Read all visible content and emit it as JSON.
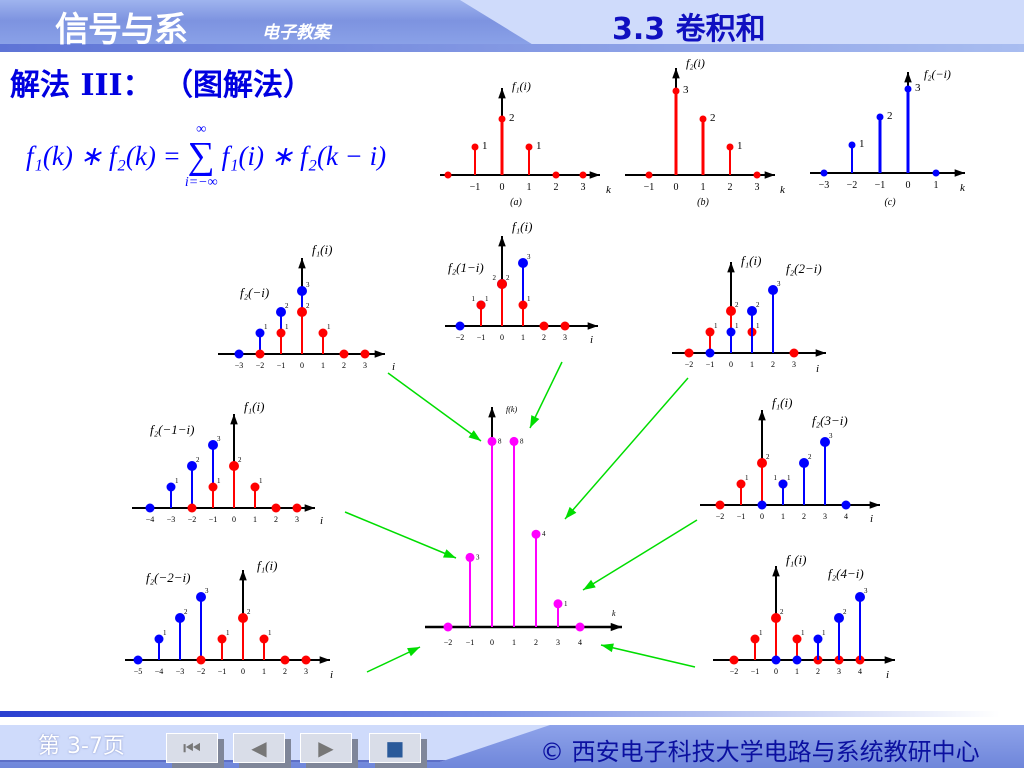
{
  "header": {
    "course_title": "信号与系",
    "course_sub": "电子教案",
    "section": "3.3  卷积和"
  },
  "method": "解法 III：  （图解法）",
  "formula": {
    "lhs": "f₁(k) ∗ f₂(k) = ",
    "sum": "∑",
    "upper": "∞",
    "lower": "i=−∞",
    "rhs": "f₁(i) ∗ f₂(k − i)"
  },
  "colors": {
    "f1": "#ff0000",
    "f2": "#0000ff",
    "result": "#ff00ff",
    "arrow": "#00dd00"
  },
  "plots": [
    {
      "id": "a",
      "caption": "(a)",
      "xlabel": "k",
      "labels": [
        "f₁(i)"
      ],
      "ticks": [
        -1,
        0,
        1,
        2,
        3
      ],
      "series": [
        {
          "color": "f1",
          "points": [
            [
              -2,
              0
            ],
            [
              -1,
              1
            ],
            [
              0,
              2
            ],
            [
              1,
              1
            ],
            [
              2,
              0
            ],
            [
              3,
              0
            ]
          ]
        }
      ]
    },
    {
      "id": "b",
      "caption": "(b)",
      "xlabel": "k",
      "labels": [
        "f₂(i)"
      ],
      "ticks": [
        -1,
        0,
        1,
        2,
        3
      ],
      "series": [
        {
          "color": "f1",
          "points": [
            [
              -1,
              0
            ],
            [
              0,
              3
            ],
            [
              1,
              2
            ],
            [
              2,
              1
            ],
            [
              3,
              0
            ]
          ]
        }
      ]
    },
    {
      "id": "c",
      "caption": "(c)",
      "xlabel": "k",
      "labels": [
        "f₂(−i)"
      ],
      "ticks": [
        -3,
        -2,
        -1,
        0,
        1
      ],
      "series": [
        {
          "color": "f2",
          "points": [
            [
              -3,
              0
            ],
            [
              -2,
              1
            ],
            [
              -1,
              2
            ],
            [
              0,
              3
            ],
            [
              1,
              0
            ]
          ]
        }
      ]
    },
    {
      "id": "k0",
      "xlabel": "i",
      "labels": [
        "f₁(i)",
        "f₂(−i)"
      ],
      "ticks": [
        -3,
        -2,
        -1,
        0,
        1,
        2,
        3
      ],
      "series": [
        {
          "color": "f2",
          "points": [
            [
              -3,
              0
            ],
            [
              -2,
              1
            ],
            [
              -1,
              2
            ],
            [
              0,
              3
            ]
          ]
        },
        {
          "color": "f1",
          "points": [
            [
              -2,
              0
            ],
            [
              -1,
              1
            ],
            [
              0,
              2
            ],
            [
              1,
              1
            ],
            [
              2,
              0
            ],
            [
              3,
              0
            ]
          ]
        }
      ]
    },
    {
      "id": "k1",
      "xlabel": "i",
      "labels": [
        "f₁(i)",
        "f₂(1−i)"
      ],
      "ticks": [
        -2,
        -1,
        0,
        1,
        2,
        3
      ],
      "series": [
        {
          "color": "f2",
          "points": [
            [
              -2,
              0
            ],
            [
              -1,
              1
            ],
            [
              0,
              2
            ],
            [
              1,
              3
            ]
          ]
        },
        {
          "color": "f1",
          "points": [
            [
              -1,
              1
            ],
            [
              0,
              2
            ],
            [
              1,
              1
            ],
            [
              2,
              0
            ],
            [
              3,
              0
            ]
          ]
        }
      ]
    },
    {
      "id": "k2",
      "xlabel": "i",
      "labels": [
        "f₁(i)",
        "f₂(2−i)"
      ],
      "ticks": [
        -2,
        -1,
        0,
        1,
        2,
        3
      ],
      "series": [
        {
          "color": "f1",
          "points": [
            [
              -2,
              0
            ],
            [
              -1,
              1
            ],
            [
              0,
              2
            ],
            [
              1,
              1
            ],
            [
              3,
              0
            ]
          ]
        },
        {
          "color": "f2",
          "points": [
            [
              -1,
              0
            ],
            [
              0,
              1
            ],
            [
              1,
              2
            ],
            [
              2,
              3
            ]
          ]
        }
      ]
    },
    {
      "id": "km1",
      "xlabel": "i",
      "labels": [
        "f₁(i)",
        "f₂(−1−i)"
      ],
      "ticks": [
        -4,
        -3,
        -2,
        -1,
        0,
        1,
        2,
        3
      ],
      "series": [
        {
          "color": "f2",
          "points": [
            [
              -4,
              0
            ],
            [
              -3,
              1
            ],
            [
              -2,
              2
            ],
            [
              -1,
              3
            ]
          ]
        },
        {
          "color": "f1",
          "points": [
            [
              -2,
              0
            ],
            [
              -1,
              1
            ],
            [
              0,
              2
            ],
            [
              1,
              1
            ],
            [
              2,
              0
            ],
            [
              3,
              0
            ]
          ]
        }
      ]
    },
    {
      "id": "k3",
      "xlabel": "i",
      "labels": [
        "f₁(i)",
        "f₂(3−i)"
      ],
      "ticks": [
        -2,
        -1,
        0,
        1,
        2,
        3,
        4
      ],
      "series": [
        {
          "color": "f1",
          "points": [
            [
              -2,
              0
            ],
            [
              -1,
              1
            ],
            [
              0,
              2
            ],
            [
              1,
              1
            ]
          ]
        },
        {
          "color": "f2",
          "points": [
            [
              0,
              0
            ],
            [
              1,
              1
            ],
            [
              2,
              2
            ],
            [
              3,
              3
            ],
            [
              4,
              0
            ]
          ]
        }
      ]
    },
    {
      "id": "km2",
      "xlabel": "i",
      "labels": [
        "f₁(i)",
        "f₂(−2−i)"
      ],
      "ticks": [
        -5,
        -4,
        -3,
        -2,
        -1,
        0,
        1,
        2,
        3
      ],
      "series": [
        {
          "color": "f2",
          "points": [
            [
              -5,
              0
            ],
            [
              -4,
              1
            ],
            [
              -3,
              2
            ],
            [
              -2,
              3
            ]
          ]
        },
        {
          "color": "f1",
          "points": [
            [
              -2,
              0
            ],
            [
              -1,
              1
            ],
            [
              0,
              2
            ],
            [
              1,
              1
            ],
            [
              2,
              0
            ],
            [
              3,
              0
            ]
          ]
        }
      ]
    },
    {
      "id": "k4",
      "xlabel": "i",
      "labels": [
        "f₁(i)",
        "f₂(4−i)"
      ],
      "ticks": [
        -2,
        -1,
        0,
        1,
        2,
        3,
        4
      ],
      "series": [
        {
          "color": "f1",
          "points": [
            [
              -2,
              0
            ],
            [
              -1,
              1
            ],
            [
              0,
              2
            ],
            [
              1,
              1
            ],
            [
              2,
              0
            ],
            [
              3,
              0
            ],
            [
              4,
              0
            ]
          ]
        },
        {
          "color": "f2",
          "points": [
            [
              0,
              0
            ],
            [
              1,
              0
            ],
            [
              2,
              1
            ],
            [
              3,
              2
            ],
            [
              4,
              3
            ]
          ]
        }
      ]
    }
  ],
  "chart_data": {
    "type": "stem",
    "title": "",
    "ylabel": "f(k)",
    "xlabel": "k",
    "x": [
      -2,
      -1,
      0,
      1,
      2,
      3,
      4
    ],
    "values": [
      0,
      3,
      8,
      8,
      4,
      1,
      0
    ],
    "ticks": [
      -2,
      -1,
      0,
      1,
      2,
      3,
      4
    ]
  },
  "footer": {
    "page": "第 3-7页",
    "nav": [
      "⏮",
      "◀",
      "▶",
      "■"
    ],
    "copyright": "© 西安电子科技大学电路与系统教研中心"
  }
}
